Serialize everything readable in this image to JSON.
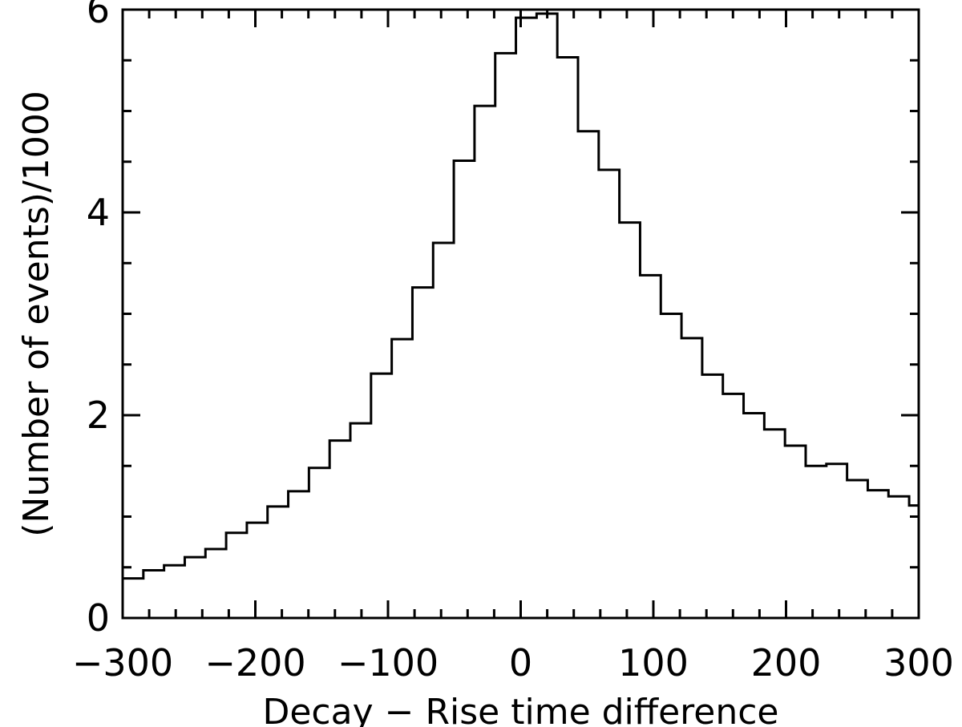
{
  "chart_data": {
    "type": "histogram",
    "title": "",
    "xlabel": "Decay − Rise time difference",
    "ylabel": "(Number of events)/1000",
    "xlim": [
      -300,
      300
    ],
    "ylim": [
      0,
      6
    ],
    "grid": false,
    "x_ticks": [
      -300,
      -200,
      -100,
      0,
      100,
      200,
      300
    ],
    "x_tick_labels": [
      "−300",
      "−200",
      "−100",
      "0",
      "100",
      "200",
      "300"
    ],
    "y_ticks": [
      0,
      2,
      4,
      6
    ],
    "y_tick_labels": [
      "0",
      "2",
      "4",
      "6"
    ],
    "bin_width": 15.6,
    "bin_edges_start": -300,
    "values": [
      0.39,
      0.47,
      0.52,
      0.6,
      0.68,
      0.84,
      0.94,
      1.1,
      1.25,
      1.48,
      1.75,
      1.92,
      2.41,
      2.75,
      3.26,
      3.7,
      4.51,
      5.05,
      5.57,
      5.92,
      5.96,
      5.53,
      4.8,
      4.42,
      3.9,
      3.38,
      3.0,
      2.76,
      2.4,
      2.21,
      2.02,
      1.86,
      1.7,
      1.5,
      1.52,
      1.36,
      1.26,
      1.2,
      1.11
    ]
  }
}
